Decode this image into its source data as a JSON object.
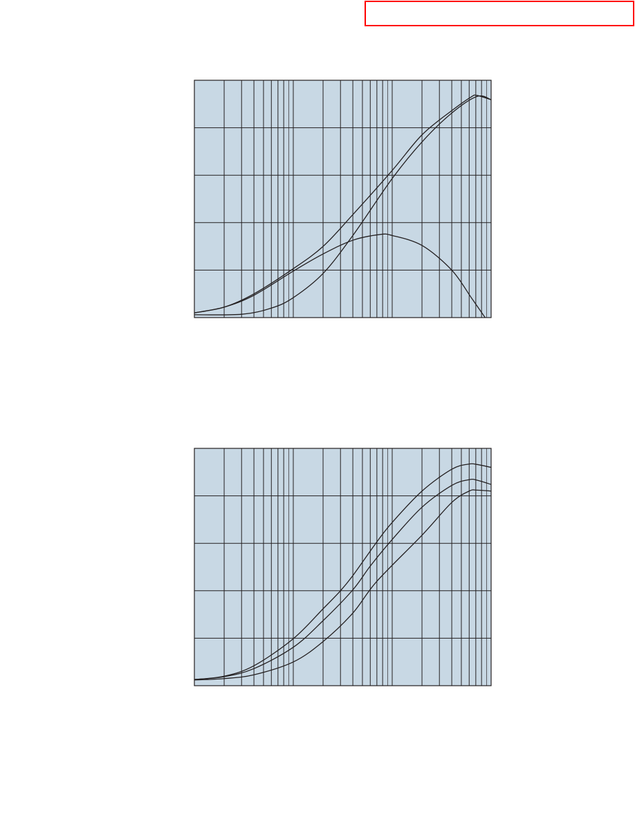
{
  "header": {
    "box_color": "#ff0000"
  },
  "colors": {
    "plot_background": "#c8d8e4",
    "grid": "#231f20",
    "curve": "#231f20"
  },
  "chart_data": [
    {
      "type": "line",
      "title": "",
      "xlabel": "",
      "ylabel": "",
      "x_scale": "log",
      "xlim": [
        1,
        1000
      ],
      "ylim": [
        0,
        5
      ],
      "grid": true,
      "legend": "none",
      "series": [
        {
          "x": [
            1,
            2,
            4,
            10,
            20,
            40,
            100,
            200,
            400,
            630,
            720,
            1000
          ],
          "y": [
            0.1,
            0.22,
            0.5,
            1.03,
            1.5,
            2.17,
            3.1,
            3.85,
            4.36,
            4.65,
            4.68,
            4.59
          ]
        },
        {
          "x": [
            1,
            3,
            6,
            10,
            20,
            40,
            100,
            200,
            400,
            720,
            1000
          ],
          "y": [
            0.06,
            0.07,
            0.2,
            0.42,
            0.93,
            1.73,
            2.93,
            3.7,
            4.31,
            4.66,
            4.59
          ]
        },
        {
          "x": [
            1,
            2,
            4,
            10,
            20,
            40,
            75,
            100,
            200,
            400,
            630,
            870
          ],
          "y": [
            0.1,
            0.22,
            0.47,
            0.98,
            1.34,
            1.63,
            1.75,
            1.73,
            1.52,
            1.0,
            0.42,
            0
          ]
        }
      ]
    },
    {
      "type": "line",
      "title": "",
      "xlabel": "",
      "ylabel": "",
      "x_scale": "log",
      "xlim": [
        1,
        1000
      ],
      "ylim": [
        0,
        5
      ],
      "grid": true,
      "legend": "none",
      "series": [
        {
          "x": [
            1,
            2,
            4,
            10,
            20,
            30,
            40,
            70,
            100,
            200,
            400,
            600,
            720,
            1000
          ],
          "y": [
            0.13,
            0.2,
            0.42,
            0.99,
            1.62,
            2.0,
            2.32,
            3.03,
            3.44,
            4.1,
            4.56,
            4.67,
            4.66,
            4.6
          ]
        },
        {
          "x": [
            1,
            2,
            4,
            10,
            20,
            40,
            60,
            100,
            200,
            400,
            600,
            720,
            1000
          ],
          "y": [
            0.13,
            0.19,
            0.36,
            0.81,
            1.37,
            2.02,
            2.52,
            3.08,
            3.76,
            4.22,
            4.34,
            4.33,
            4.24
          ]
        },
        {
          "x": [
            1,
            2,
            4,
            10,
            20,
            40,
            70,
            200,
            400,
            600,
            720,
            1000
          ],
          "y": [
            0.12,
            0.15,
            0.23,
            0.5,
            0.93,
            1.53,
            2.2,
            3.17,
            3.86,
            4.1,
            4.12,
            4.1
          ]
        }
      ]
    }
  ]
}
